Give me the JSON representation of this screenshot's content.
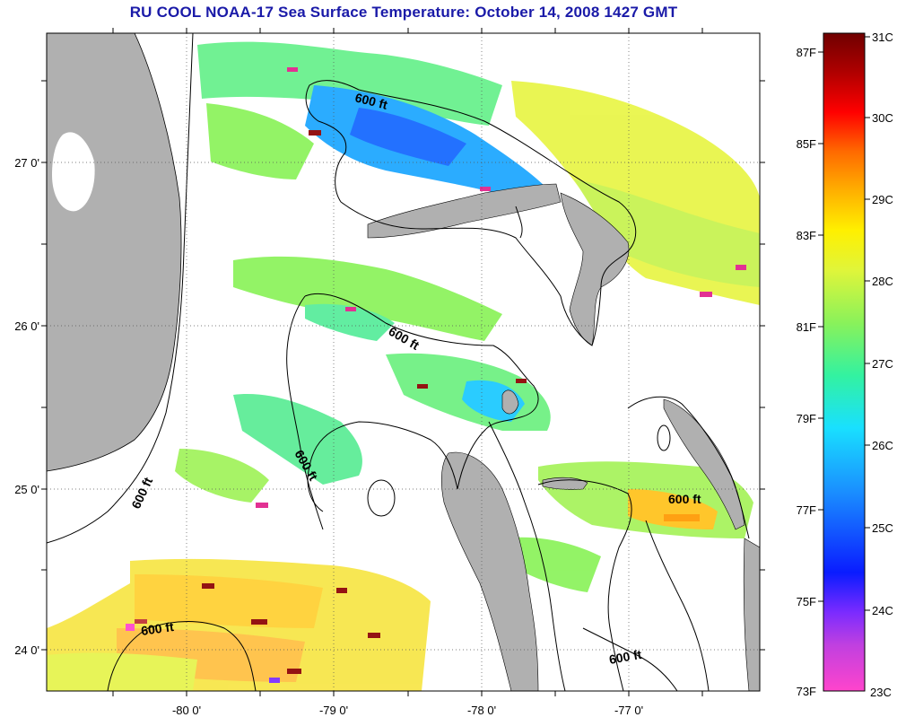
{
  "title": "RU COOL  NOAA-17  Sea Surface Temperature:  October 14, 2008 1427 GMT",
  "axes": {
    "lon_ticks": [
      "-80 0'",
      "-79 0'",
      "-78 0'",
      "-77 0'"
    ],
    "lat_ticks": [
      "27 0'",
      "26 0'",
      "25 0'",
      "24 0'"
    ]
  },
  "contour_labels": [
    "600 ft",
    "600 ft",
    "600 ft",
    "600 ft",
    "600 ft",
    "600 ft"
  ],
  "colorbar": {
    "fahrenheit_labels": [
      "87F",
      "85F",
      "83F",
      "81F",
      "79F",
      "77F",
      "75F",
      "73F"
    ],
    "celsius_labels": [
      "31C",
      "30C",
      "29C",
      "28C",
      "27C",
      "26C",
      "25C",
      "24C",
      "23C"
    ],
    "colors": [
      "#ff44cc",
      "#7a2bff",
      "#0a1cff",
      "#1a8cff",
      "#19e0ff",
      "#33f2a0",
      "#8af25a",
      "#e0f53a",
      "#fff000",
      "#ffb000",
      "#ff6a00",
      "#ff0000",
      "#b00000",
      "#700000"
    ]
  },
  "colors": {
    "land": "#b0b0b0",
    "ocean_nodata": "#ffffff",
    "title": "#1a1aa8"
  }
}
